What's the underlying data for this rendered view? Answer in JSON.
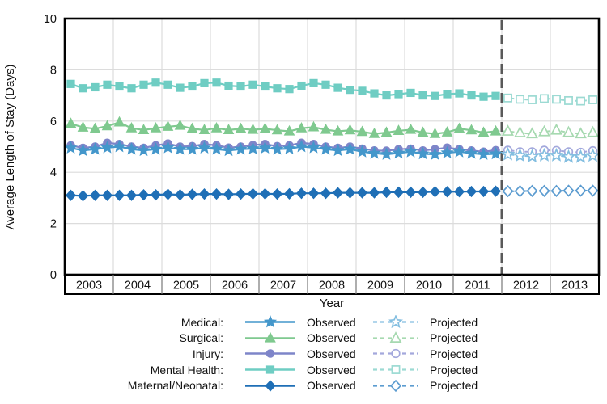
{
  "chart_data": {
    "type": "line",
    "ylabel": "Average Length of Stay (Days)",
    "xlabel": "Year",
    "ylim": [
      0,
      10
    ],
    "yticks": [
      "0",
      "2",
      "4",
      "6",
      "8",
      "10"
    ],
    "years": [
      "2003",
      "2004",
      "2005",
      "2006",
      "2007",
      "2008",
      "2009",
      "2010",
      "2011",
      "2012",
      "2013"
    ],
    "points_per_year": 4,
    "grid": true,
    "forecast_divider_year": "2012",
    "divider_color": "#595959",
    "legend": {
      "observed_label": "Observed",
      "projected_label": "Projected",
      "rows": [
        {
          "label": "Medical:"
        },
        {
          "label": "Surgical:"
        },
        {
          "label": "Injury:"
        },
        {
          "label": "Mental Health:"
        },
        {
          "label": "Maternal/Neonatal:"
        }
      ]
    },
    "series": [
      {
        "name": "Medical",
        "marker": "star",
        "color": "#4497CB",
        "projected_color": "#83BEE0",
        "observed": {
          "start_year": 2003,
          "values": [
            4.95,
            4.85,
            4.9,
            4.96,
            5.0,
            4.9,
            4.85,
            4.9,
            4.96,
            4.9,
            4.9,
            4.95,
            4.9,
            4.85,
            4.9,
            4.92,
            4.95,
            4.9,
            4.92,
            5.0,
            4.96,
            4.9,
            4.85,
            4.9,
            4.8,
            4.74,
            4.7,
            4.75,
            4.8,
            4.72,
            4.7,
            4.76,
            4.8,
            4.74,
            4.7,
            4.72
          ]
        },
        "projected": {
          "start_year": 2012,
          "values": [
            4.7,
            4.65,
            4.62,
            4.66,
            4.66,
            4.6,
            4.6,
            4.65
          ]
        }
      },
      {
        "name": "Surgical",
        "marker": "triangle",
        "color": "#7FC98F",
        "projected_color": "#A6D9B0",
        "observed": {
          "start_year": 2003,
          "values": [
            5.9,
            5.75,
            5.7,
            5.8,
            5.95,
            5.72,
            5.65,
            5.72,
            5.78,
            5.82,
            5.7,
            5.65,
            5.72,
            5.65,
            5.7,
            5.66,
            5.7,
            5.64,
            5.6,
            5.72,
            5.76,
            5.66,
            5.6,
            5.64,
            5.58,
            5.5,
            5.55,
            5.62,
            5.66,
            5.55,
            5.5,
            5.56,
            5.7,
            5.64,
            5.55,
            5.6
          ]
        },
        "projected": {
          "start_year": 2012,
          "values": [
            5.6,
            5.54,
            5.5,
            5.58,
            5.64,
            5.55,
            5.5,
            5.55
          ]
        }
      },
      {
        "name": "Injury",
        "marker": "circle",
        "color": "#7E85C9",
        "projected_color": "#A3A8DC",
        "observed": {
          "start_year": 2003,
          "values": [
            5.05,
            4.95,
            5.0,
            5.15,
            5.1,
            5.0,
            4.95,
            5.05,
            5.12,
            5.0,
            5.02,
            5.1,
            5.05,
            4.96,
            5.0,
            5.06,
            5.1,
            5.02,
            5.05,
            5.15,
            5.1,
            5.0,
            4.95,
            5.0,
            4.92,
            4.85,
            4.84,
            4.9,
            4.92,
            4.85,
            4.9,
            4.96,
            4.9,
            4.85,
            4.8,
            4.86
          ]
        },
        "projected": {
          "start_year": 2012,
          "values": [
            4.86,
            4.8,
            4.8,
            4.86,
            4.85,
            4.8,
            4.78,
            4.84
          ]
        }
      },
      {
        "name": "Mental Health",
        "marker": "square",
        "color": "#6FCDC3",
        "projected_color": "#9CDAD3",
        "observed": {
          "start_year": 2003,
          "values": [
            7.45,
            7.28,
            7.32,
            7.42,
            7.35,
            7.28,
            7.42,
            7.5,
            7.42,
            7.3,
            7.35,
            7.48,
            7.5,
            7.38,
            7.35,
            7.42,
            7.35,
            7.28,
            7.25,
            7.38,
            7.48,
            7.42,
            7.3,
            7.22,
            7.18,
            7.08,
            7.0,
            7.05,
            7.1,
            7.0,
            6.98,
            7.05,
            7.08,
            7.0,
            6.95,
            6.98
          ]
        },
        "projected": {
          "start_year": 2012,
          "values": [
            6.9,
            6.85,
            6.83,
            6.88,
            6.85,
            6.8,
            6.78,
            6.83
          ]
        }
      },
      {
        "name": "Maternal/Neonatal",
        "marker": "diamond",
        "color": "#1F6FB6",
        "projected_color": "#5C9CD0",
        "observed": {
          "start_year": 2003,
          "values": [
            3.1,
            3.08,
            3.1,
            3.1,
            3.1,
            3.1,
            3.12,
            3.12,
            3.14,
            3.12,
            3.14,
            3.15,
            3.15,
            3.14,
            3.15,
            3.16,
            3.16,
            3.15,
            3.16,
            3.18,
            3.18,
            3.18,
            3.2,
            3.2,
            3.2,
            3.2,
            3.22,
            3.22,
            3.22,
            3.22,
            3.24,
            3.24,
            3.24,
            3.25,
            3.25,
            3.26
          ]
        },
        "projected": {
          "start_year": 2012,
          "values": [
            3.26,
            3.26,
            3.27,
            3.27,
            3.27,
            3.28,
            3.28,
            3.28
          ]
        }
      }
    ]
  }
}
